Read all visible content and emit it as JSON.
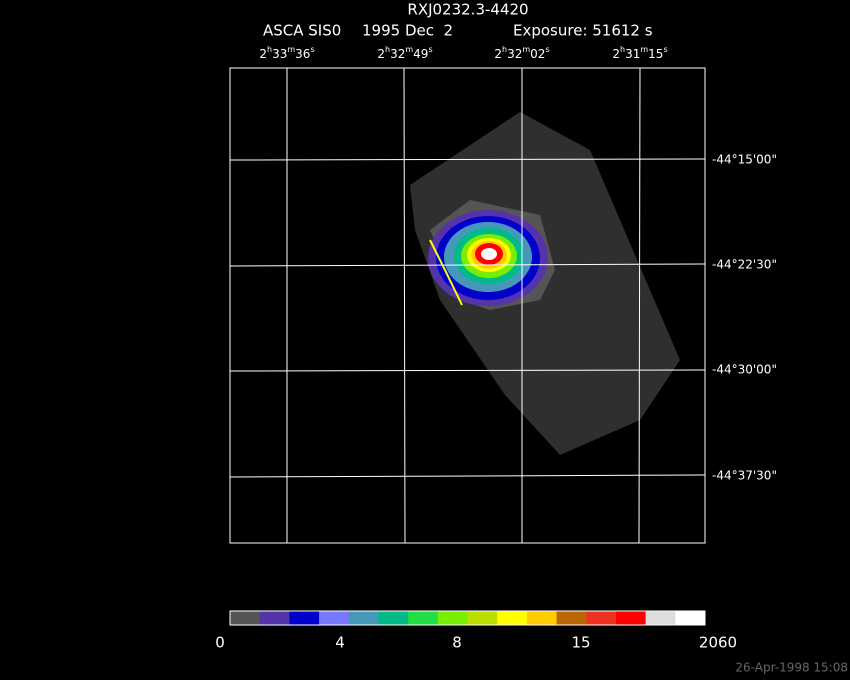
{
  "title": "RXJ0232.3-4420",
  "subtitle": {
    "instrument": "ASCA SIS0",
    "date": "1995 Dec  2",
    "exposure": "Exposure: 51612 s"
  },
  "ra_labels": [
    [
      "2",
      "h",
      "33",
      "m",
      "36",
      "s"
    ],
    [
      "2",
      "h",
      "32",
      "m",
      "49",
      "s"
    ],
    [
      "2",
      "h",
      "32",
      "m",
      "02",
      "s"
    ],
    [
      "2",
      "h",
      "31",
      "m",
      "15",
      "s"
    ]
  ],
  "dec_labels": [
    "-44°15'00\"",
    "-44°22'30\"",
    "-44°30'00\"",
    "-44°37'30\""
  ],
  "colorbar": {
    "labels": [
      "0",
      "4",
      "8",
      "15",
      "2060"
    ],
    "colors": [
      "#555555",
      "#5533aa",
      "#0000cc",
      "#7777ff",
      "#4499bb",
      "#00bb88",
      "#22dd44",
      "#77ee00",
      "#bbdd00",
      "#ffff00",
      "#ffcc00",
      "#bb6600",
      "#ee3322",
      "#ff0000",
      "#dddddd",
      "#ffffff"
    ]
  },
  "timestamp": "26-Apr-1998 15:08"
}
